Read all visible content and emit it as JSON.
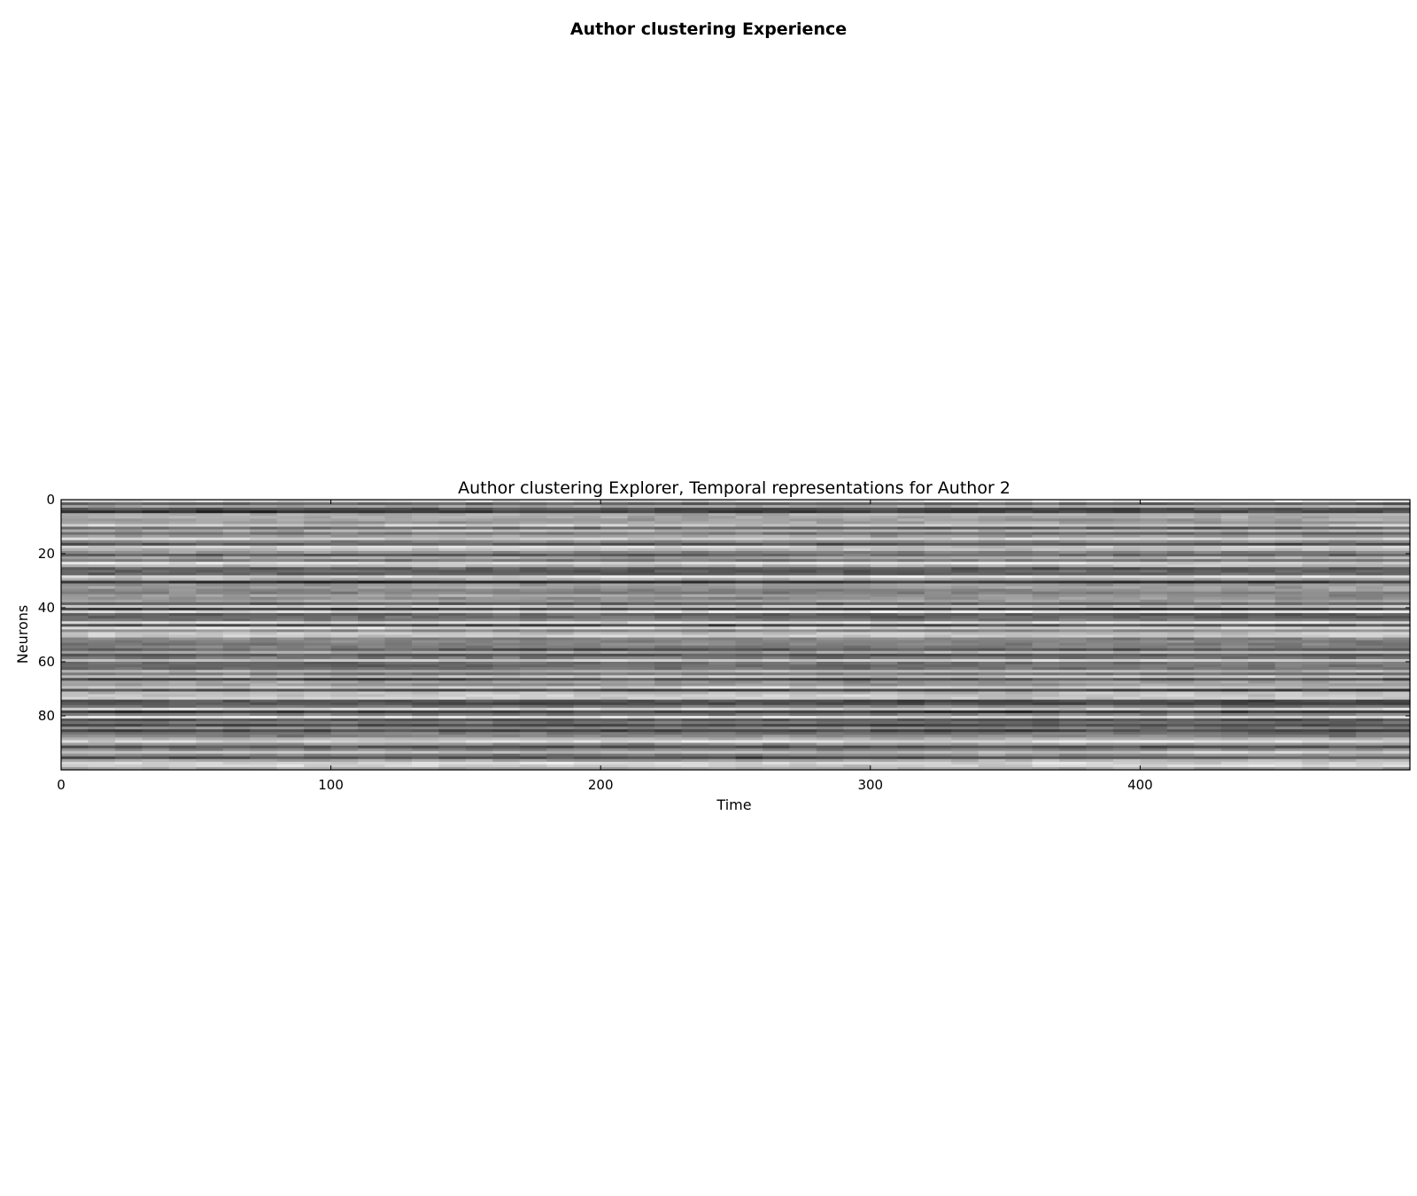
{
  "figure": {
    "title": "Author clustering Experience"
  },
  "chart_data": {
    "type": "heatmap",
    "title": "Author clustering Explorer, Temporal representations for Author 2",
    "xlabel": "Time",
    "ylabel": "Neurons",
    "xlim": [
      0,
      500
    ],
    "ylim": [
      0,
      100
    ],
    "y_inverted": true,
    "x_ticks": [
      0,
      100,
      200,
      300,
      400
    ],
    "y_ticks": [
      0,
      20,
      40,
      60,
      80
    ],
    "colormap": "gray",
    "n_rows": 100,
    "n_cols": 500,
    "grid": false,
    "colors": {
      "dark": "#1a1a1a",
      "light": "#f2f2f2",
      "frame": "#000000"
    }
  }
}
